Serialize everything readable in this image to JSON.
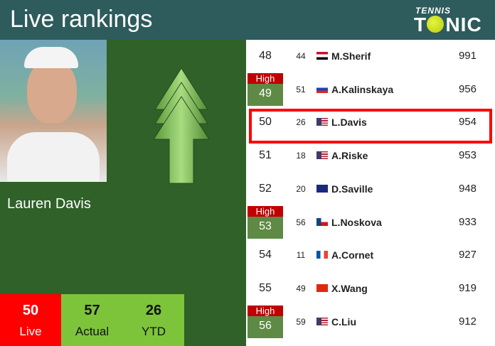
{
  "header": {
    "title": "Live rankings",
    "logo": "TENNIS TONIC"
  },
  "player": {
    "name": "Lauren Davis"
  },
  "stats": [
    {
      "value": "50",
      "label": "Live",
      "color": "#ff0000"
    },
    {
      "value": "57",
      "label": "Actual",
      "color": "#7dc43b"
    },
    {
      "value": "26",
      "label": "YTD",
      "color": "#7dc43b"
    }
  ],
  "trend": "up-arrow",
  "high_label": "High",
  "rows": [
    {
      "rank": "48",
      "prev": "44",
      "flag": "egypt",
      "player": "M.Sherif",
      "points": "991",
      "high": false
    },
    {
      "rank": "49",
      "prev": "51",
      "flag": "russia",
      "player": "A.Kalinskaya",
      "points": "956",
      "high": true
    },
    {
      "rank": "50",
      "prev": "26",
      "flag": "usa",
      "player": "L.Davis",
      "points": "954",
      "high": false,
      "highlighted": true
    },
    {
      "rank": "51",
      "prev": "18",
      "flag": "usa",
      "player": "A.Riske",
      "points": "953",
      "high": false
    },
    {
      "rank": "52",
      "prev": "20",
      "flag": "australia",
      "player": "D.Saville",
      "points": "948",
      "high": false
    },
    {
      "rank": "53",
      "prev": "56",
      "flag": "czech",
      "player": "L.Noskova",
      "points": "933",
      "high": true
    },
    {
      "rank": "54",
      "prev": "11",
      "flag": "france",
      "player": "A.Cornet",
      "points": "927",
      "high": false
    },
    {
      "rank": "55",
      "prev": "49",
      "flag": "china",
      "player": "X.Wang",
      "points": "919",
      "high": false
    },
    {
      "rank": "56",
      "prev": "59",
      "flag": "usa",
      "player": "C.Liu",
      "points": "912",
      "high": true
    }
  ]
}
